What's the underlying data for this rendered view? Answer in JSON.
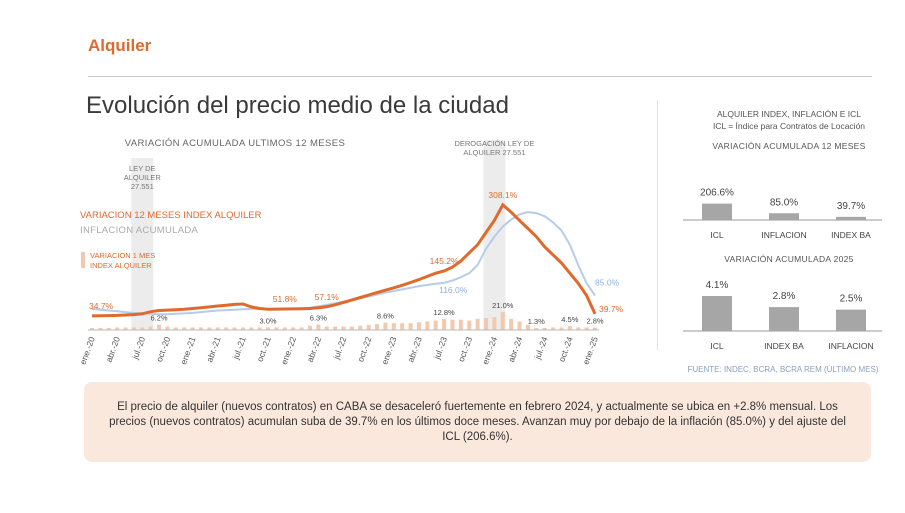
{
  "section_title": "Alquiler",
  "main_title": "Evolución del precio medio de la ciudad",
  "summary": "El precio de alquiler (nuevos contratos) en CABA se desaceleró fuertemente en febrero 2024, y actualmente se ubica en +2.8% mensual. Los precios (nuevos contratos) acumulan suba de 39.7% en los últimos doce meses. Avanzan muy por debajo de la inflación (85.0%) y del ajuste del ICL (206.6%).",
  "colors": {
    "accent": "#e06a2c",
    "inflation": "#b7cce8",
    "monthly_bar": "#f2c9ae",
    "highlight": "#dcdcdc",
    "gray_bar": "#a6a6a6",
    "summary_bg": "#fbe8dc"
  },
  "chart_data": [
    {
      "type": "line",
      "title": "VARIACIÓN ACUMULADA ULTIMOS 12 MESES",
      "x": [
        "ene.-20",
        "feb.-20",
        "mar.-20",
        "abr.-20",
        "may.-20",
        "jun.-20",
        "jul.-20",
        "ago.-20",
        "sep.-20",
        "oct.-20",
        "nov.-20",
        "dic.-20",
        "ene.-21",
        "feb.-21",
        "mar.-21",
        "abr.-21",
        "may.-21",
        "jun.-21",
        "jul.-21",
        "ago.-21",
        "sep.-21",
        "oct.-21",
        "nov.-21",
        "dic.-21",
        "ene.-22",
        "feb.-22",
        "mar.-22",
        "abr.-22",
        "may.-22",
        "jun.-22",
        "jul.-22",
        "ago.-22",
        "sep.-22",
        "oct.-22",
        "nov.-22",
        "dic.-22",
        "ene.-23",
        "feb.-23",
        "mar.-23",
        "abr.-23",
        "may.-23",
        "jun.-23",
        "jul.-23",
        "ago.-23",
        "sep.-23",
        "oct.-23",
        "nov.-23",
        "dic.-23",
        "ene.-24",
        "feb.-24",
        "mar.-24",
        "abr.-24",
        "may.-24",
        "jun.-24",
        "jul.-24",
        "ago.-24",
        "sep.-24",
        "oct.-24",
        "nov.-24",
        "dic.-24",
        "ene.-25"
      ],
      "tick_labels": [
        "ene.-20",
        "abr.-20",
        "jul.-20",
        "oct.-20",
        "ene.-21",
        "abr.-21",
        "jul.-21",
        "oct.-21",
        "ene.-22",
        "abr.-22",
        "jul.-22",
        "oct.-22",
        "ene.-23",
        "abr.-23",
        "jul.-23",
        "oct.-23",
        "ene.-24",
        "abr.-24",
        "jul.-24",
        "oct.-24",
        "ene.-25"
      ],
      "series": [
        {
          "name": "VARIACION 12 MESES INDEX ALQUILER",
          "values": [
            34.7,
            35,
            35.5,
            36,
            37,
            38,
            40,
            45,
            48,
            49,
            50,
            51,
            53,
            55,
            57,
            59,
            61,
            63,
            64,
            57,
            53,
            51,
            51.5,
            51.8,
            52,
            52.5,
            53,
            55,
            57.1,
            62,
            68,
            74,
            80,
            86,
            92,
            98,
            104,
            110,
            117,
            124,
            132,
            140,
            145.2,
            155,
            170,
            190,
            210,
            240,
            270,
            308.1,
            290,
            270,
            250,
            230,
            205,
            185,
            165,
            140,
            115,
            85,
            39.7
          ],
          "labels": {
            "0": "34.7%",
            "23": "51.8%",
            "28": "57.1%",
            "42": "145.2%",
            "49": "308.1%",
            "60": "39.7%"
          }
        },
        {
          "name": "INFLACION ACUMULADA",
          "values": [
            52,
            50,
            48,
            46,
            44,
            42,
            41,
            40,
            39,
            39,
            40,
            41,
            42,
            44,
            46,
            48,
            49,
            50,
            51,
            52,
            52,
            51,
            51,
            51,
            52,
            53,
            55,
            58,
            62,
            66,
            70,
            74,
            78,
            82,
            87,
            92,
            96,
            100,
            104,
            108,
            111,
            114,
            116,
            122,
            130,
            140,
            160,
            200,
            230,
            255,
            272,
            285,
            290,
            288,
            280,
            265,
            245,
            210,
            160,
            115,
            85
          ],
          "labels": {
            "42": "116.0%",
            "60": "85.0%"
          }
        },
        {
          "name": "VARIACION 1 MES INDEX ALQUILER",
          "kind": "bar",
          "values": [
            2,
            2,
            2,
            3,
            3,
            3,
            3,
            4,
            6.2,
            4,
            3,
            3,
            3,
            3,
            3,
            3,
            3,
            3,
            3,
            3,
            3,
            3.0,
            3,
            3,
            3,
            3,
            5,
            6.3,
            4,
            4,
            4,
            4,
            5,
            6,
            7,
            8.6,
            8,
            8,
            8,
            9,
            10,
            11,
            12.8,
            12,
            12,
            11,
            13,
            14,
            15,
            21.0,
            13,
            10,
            6,
            1.3,
            2,
            3,
            3,
            4.5,
            3,
            3,
            2.8
          ],
          "labels": {
            "8": "6.2%",
            "21": "3.0%",
            "27": "6.3%",
            "35": "8.6%",
            "42": "12.8%",
            "49": "21.0%",
            "53": "1.3%",
            "57": "4.5%",
            "60": "2.8%"
          }
        }
      ],
      "annotations": [
        {
          "text": "LEY DE ALQUILER 27.551",
          "at": "jul.-20"
        },
        {
          "text": "DEROGACIÓN LEY DE ALQUILER 27.551",
          "at": "ene.-24"
        }
      ],
      "ylim": [
        0,
        330
      ]
    },
    {
      "type": "bar",
      "title": "VARIACIÓN ACUMULADA 12 MESES",
      "categories": [
        "ICL",
        "INFLACION",
        "INDEX BA"
      ],
      "values": [
        206.6,
        85.0,
        39.7
      ],
      "labels": [
        "206.6%",
        "85.0%",
        "39.7%"
      ],
      "ylim": [
        0,
        630
      ]
    },
    {
      "type": "bar",
      "title": "VARIACIÓN ACUMULADA 2025",
      "categories": [
        "ICL",
        "INDEX BA",
        "INFLACION"
      ],
      "values": [
        4.1,
        2.8,
        2.5
      ],
      "labels": [
        "4.1%",
        "2.8%",
        "2.5%"
      ],
      "ylim": [
        0,
        4.1
      ]
    }
  ],
  "right_header_1": "ALQUILER INDEX, INFLACIÓN E ICL",
  "right_header_2": "ICL = Índice para Contratos de Locación",
  "source": "FUENTE: INDEC, BCRA, BCRA REM (ÚLTIMO MES)"
}
